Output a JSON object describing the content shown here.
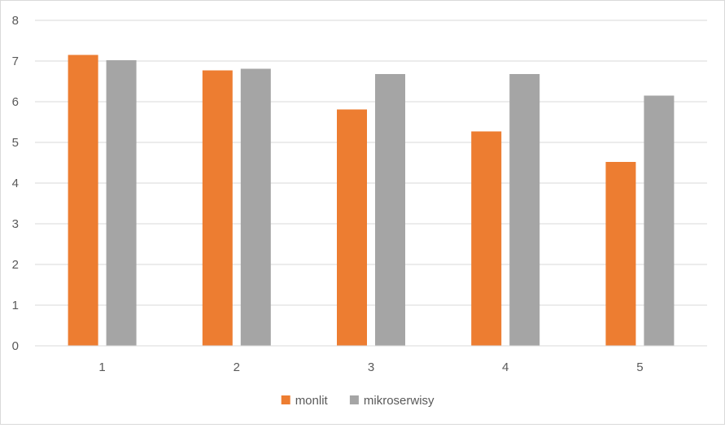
{
  "chart_data": {
    "type": "bar",
    "categories": [
      "1",
      "2",
      "3",
      "4",
      "5"
    ],
    "series": [
      {
        "name": "monlit",
        "color": "#ed7d31",
        "values": [
          7.15,
          6.77,
          5.81,
          5.27,
          4.52
        ]
      },
      {
        "name": "mikroserwisy",
        "color": "#a5a5a5",
        "values": [
          7.02,
          6.81,
          6.68,
          6.68,
          6.15
        ]
      }
    ],
    "ylim": [
      0,
      8
    ],
    "yticks": [
      "0",
      "1",
      "2",
      "3",
      "4",
      "5",
      "6",
      "7",
      "8"
    ],
    "grid": true,
    "legend_position": "bottom"
  }
}
